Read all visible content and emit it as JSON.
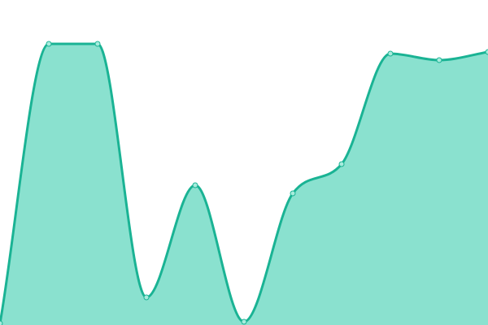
{
  "chart_data": {
    "type": "area",
    "x": [
      0,
      1,
      2,
      3,
      4,
      5,
      6,
      7,
      8,
      9,
      10
    ],
    "series": [
      {
        "values": [
          0.5,
          86.5,
          86.5,
          8.5,
          43,
          1,
          40.5,
          49.5,
          83.5,
          81.5,
          84
        ]
      }
    ],
    "xlim": [
      0,
      10
    ],
    "ylim": [
      0,
      100
    ],
    "grid": false,
    "legend": "none",
    "colors": {
      "line": "#1ab394",
      "fill": "#8ae1cf",
      "point_fill": "#a8ecdd",
      "point_stroke": "#1ab394"
    }
  }
}
